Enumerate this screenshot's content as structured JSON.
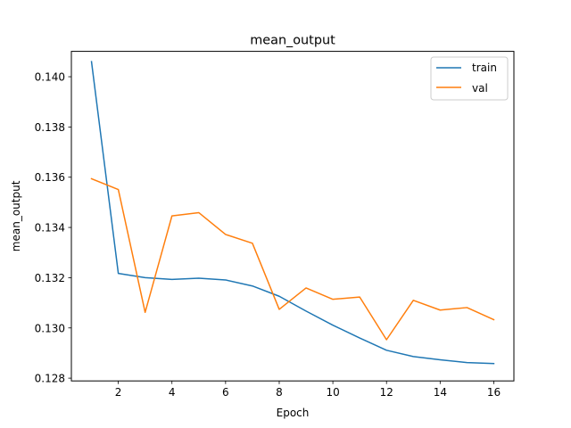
{
  "chart_data": {
    "type": "line",
    "title": "mean_output",
    "xlabel": "Epoch",
    "ylabel": "mean_output",
    "xlim": [
      0.25,
      16.75
    ],
    "ylim": [
      0.12789,
      0.14101
    ],
    "xticks": [
      2,
      4,
      6,
      8,
      10,
      12,
      14,
      16
    ],
    "xtick_labels": [
      "2",
      "4",
      "6",
      "8",
      "10",
      "12",
      "14",
      "16"
    ],
    "yticks": [
      0.128,
      0.13,
      0.132,
      0.134,
      0.136,
      0.138,
      0.14
    ],
    "ytick_labels": [
      "0.128",
      "0.130",
      "0.132",
      "0.134",
      "0.136",
      "0.138",
      "0.140"
    ],
    "grid": false,
    "legend_position": "top-right",
    "x": [
      1,
      2,
      3,
      4,
      5,
      6,
      7,
      8,
      9,
      10,
      11,
      12,
      13,
      14,
      15,
      16
    ],
    "series": [
      {
        "name": "train",
        "color": "#1f77b4",
        "values": [
          0.1406,
          0.13217,
          0.132,
          0.13193,
          0.13198,
          0.13191,
          0.13167,
          0.13126,
          0.13067,
          0.13011,
          0.1296,
          0.12911,
          0.12886,
          0.12873,
          0.12862,
          0.12858
        ]
      },
      {
        "name": "val",
        "color": "#ff7f0e",
        "values": [
          0.13594,
          0.13551,
          0.13062,
          0.13446,
          0.13459,
          0.13372,
          0.13337,
          0.13074,
          0.13159,
          0.13114,
          0.13123,
          0.12953,
          0.1311,
          0.13071,
          0.13081,
          0.13033
        ]
      }
    ]
  }
}
